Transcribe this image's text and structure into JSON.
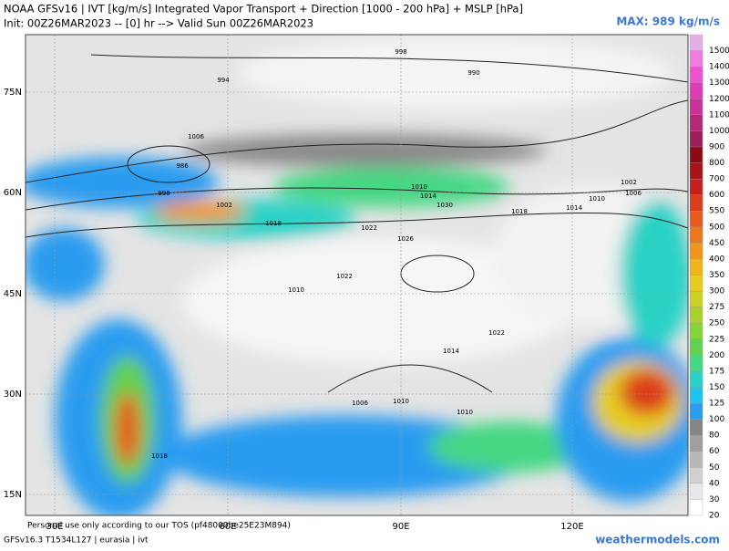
{
  "header": {
    "title": "NOAA GFSv16 | IVT [kg/m/s] Integrated Vapor Transport + Direction [1000 - 200 hPa] + MSLP [hPa]",
    "init": "Init: 00Z26MAR2023 -- [0] hr --> Valid Sun 00Z26MAR2023",
    "max": "MAX: 989 kg/m/s"
  },
  "colorbar": {
    "labels": [
      "20",
      "30",
      "40",
      "50",
      "60",
      "80",
      "100",
      "125",
      "150",
      "175",
      "200",
      "225",
      "250",
      "275",
      "300",
      "350",
      "400",
      "450",
      "500",
      "550",
      "600",
      "700",
      "800",
      "900",
      "1000",
      "1100",
      "1200",
      "1300",
      "1400",
      "1500"
    ],
    "colors": [
      "#ffffff",
      "#e8e8e8",
      "#d0d0d0",
      "#b8b8b8",
      "#a0a0a0",
      "#868686",
      "#2b9cf0",
      "#1ec3ee",
      "#2ad2c6",
      "#44d884",
      "#62d050",
      "#86d23a",
      "#a8d030",
      "#cccf28",
      "#e6cc22",
      "#f2b41e",
      "#f0961e",
      "#ec781e",
      "#e65a1e",
      "#dc3c1e",
      "#c81e1e",
      "#a8141a",
      "#8c0a12",
      "#9c1e5a",
      "#b4287a",
      "#c8329a",
      "#dc3cb4",
      "#ee52d0",
      "#f07ce0",
      "#e4aee6"
    ]
  },
  "axes": {
    "lat": [
      "75N",
      "60N",
      "45N",
      "30N",
      "15N"
    ],
    "lon": [
      "30E",
      "60E",
      "90E",
      "120E"
    ]
  },
  "isobars": [
    "998",
    "994",
    "990",
    "986",
    "998",
    "1002",
    "1006",
    "1010",
    "1014",
    "1018",
    "1022",
    "1026",
    "1030",
    "1018",
    "1022",
    "1010",
    "1014",
    "1006",
    "1010",
    "1010",
    "1018",
    "1022",
    "1002",
    "1006",
    "1010",
    "1014"
  ],
  "footer": {
    "tos": "Personal use only according to our TOS (pf48000be25E23M894)",
    "model": "GFSv16.3 T1534L127 | eurasia | ivt",
    "site": "weathermodels.com"
  }
}
